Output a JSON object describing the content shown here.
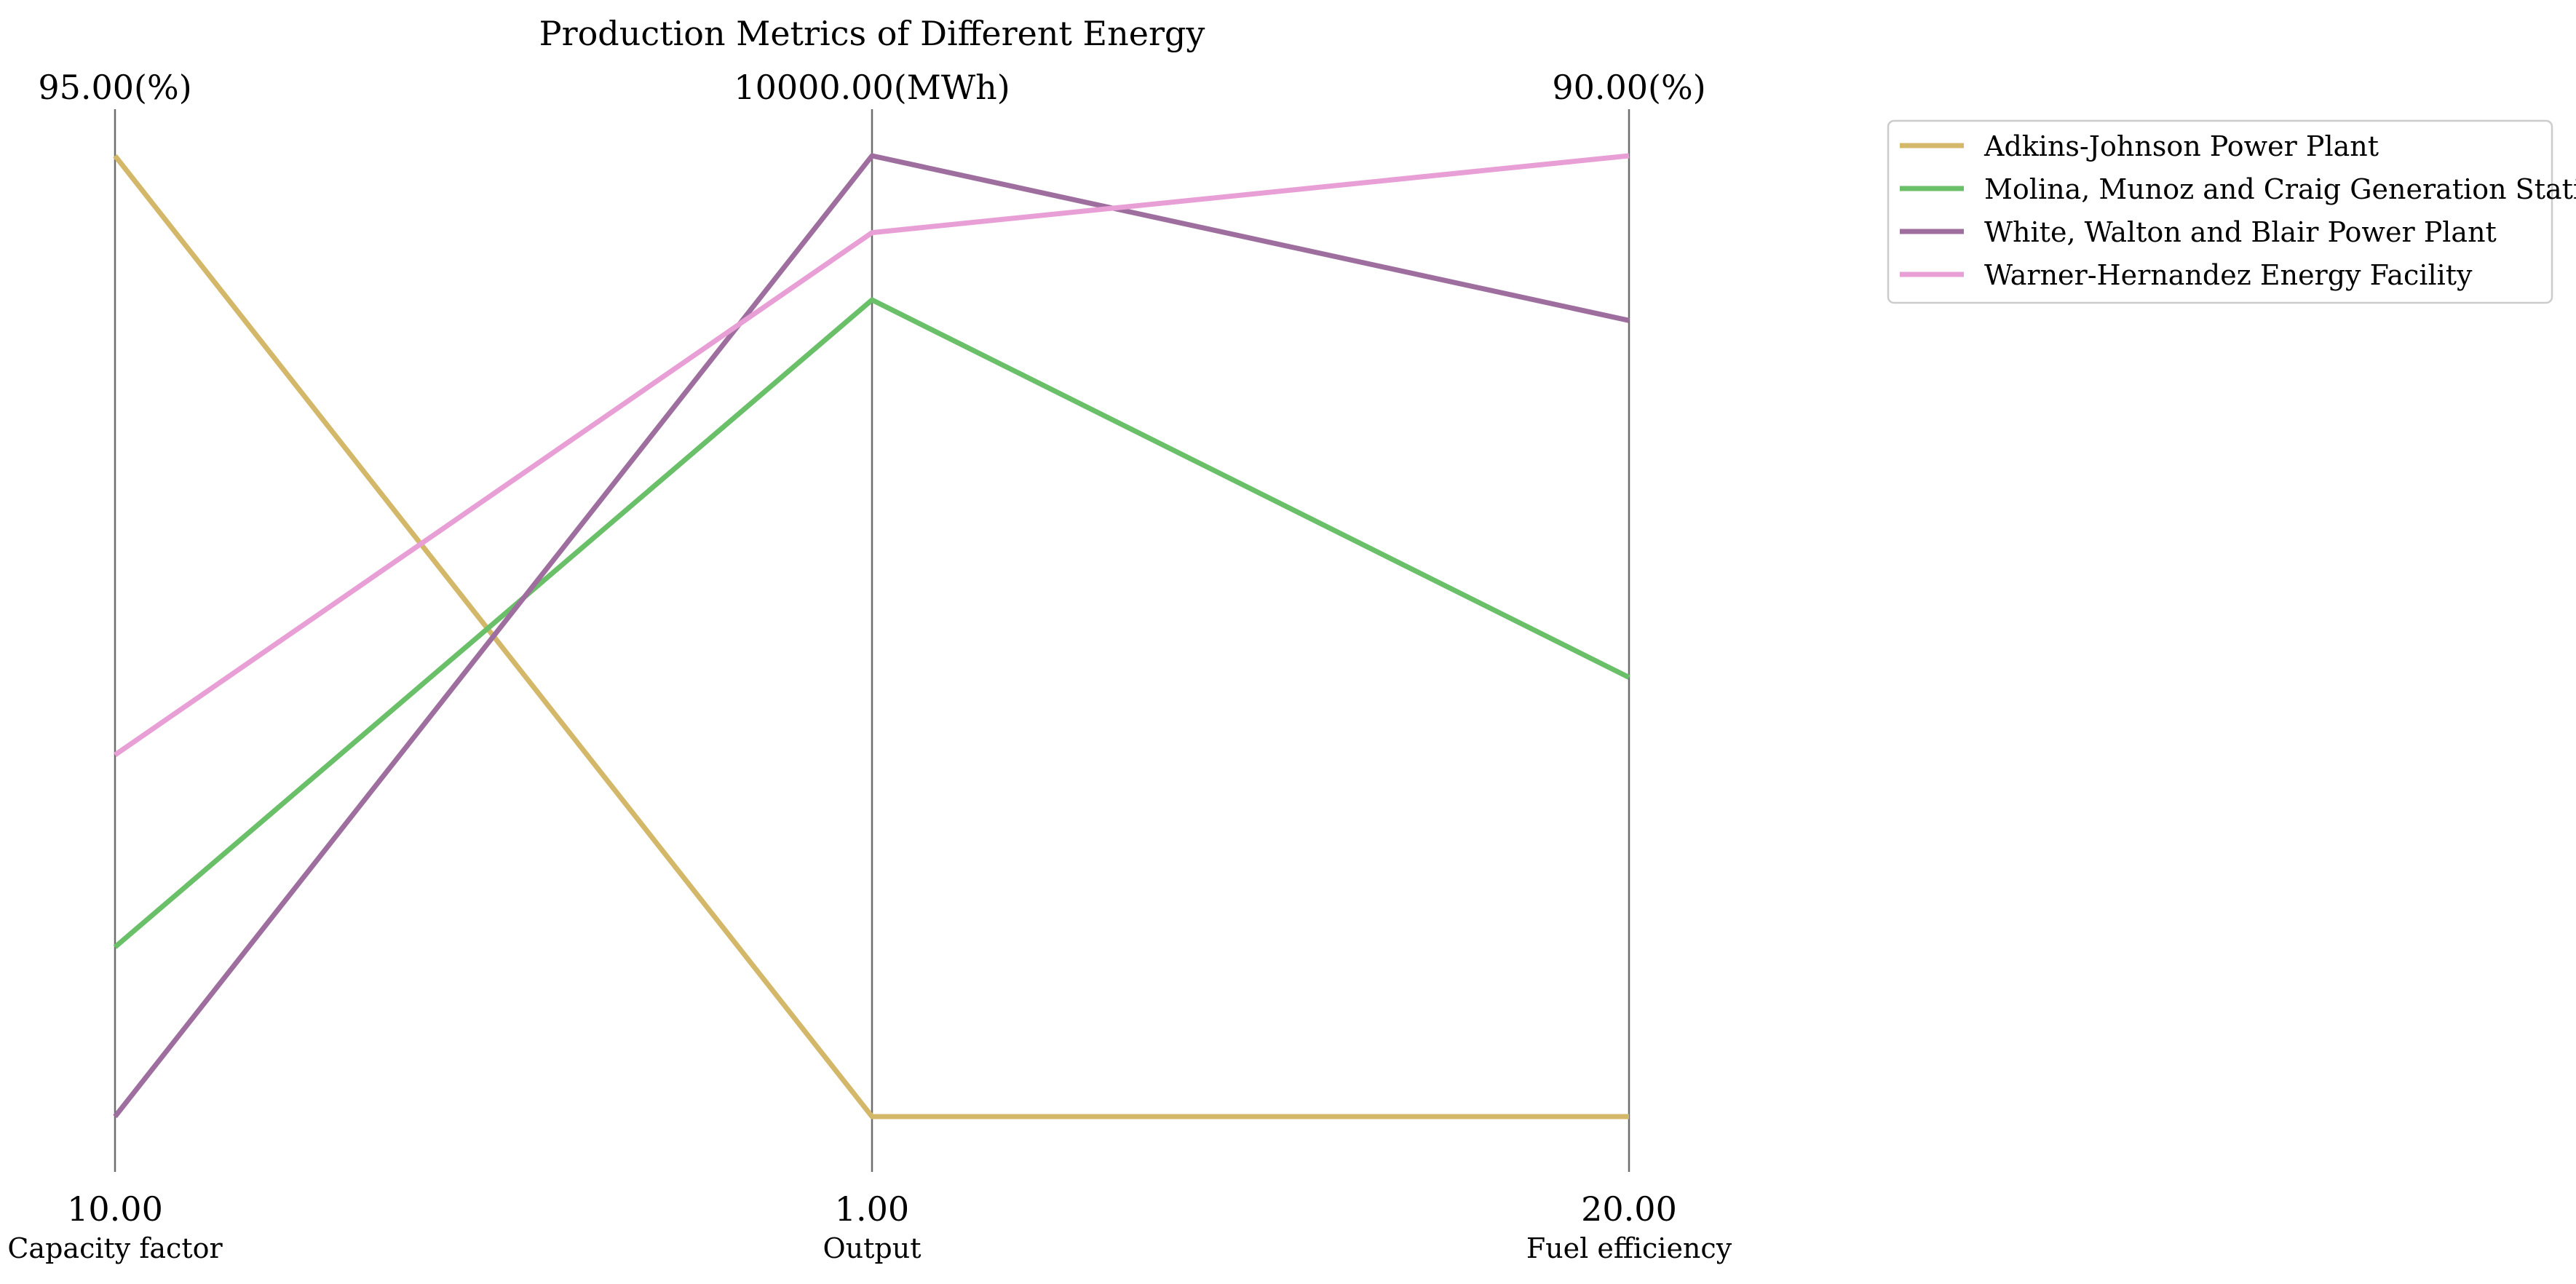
{
  "chart_data": {
    "type": "parallel_coordinates",
    "title": "Production Metrics of Different Energy",
    "axes": [
      {
        "name": "Capacity factor",
        "min": 10,
        "max": 95,
        "min_label": "10.00",
        "max_label": "95.00(%)"
      },
      {
        "name": "Output",
        "min": 1,
        "max": 10000,
        "min_label": "1.00",
        "max_label": "10000.00(MWh)"
      },
      {
        "name": "Fuel efficiency",
        "min": 20,
        "max": 90,
        "min_label": "20.00",
        "max_label": "90.00(%)"
      }
    ],
    "series": [
      {
        "name": "Adkins-Johnson  Power Plant",
        "color": "#D4B86A",
        "values": [
          95,
          1,
          20
        ]
      },
      {
        "name": "Molina, Munoz and Craig  Generation Station",
        "color": "#6ABF69",
        "values": [
          25,
          8500,
          52
        ]
      },
      {
        "name": "White, Walton and Blair  Power Plant",
        "color": "#9E6F9E",
        "values": [
          10,
          10000,
          78
        ]
      },
      {
        "name": "Warner-Hernandez  Energy Facility",
        "color": "#E89FD6",
        "values": [
          42,
          9200,
          90
        ]
      }
    ],
    "legend_placement": "upper-right outside",
    "grid": false
  }
}
